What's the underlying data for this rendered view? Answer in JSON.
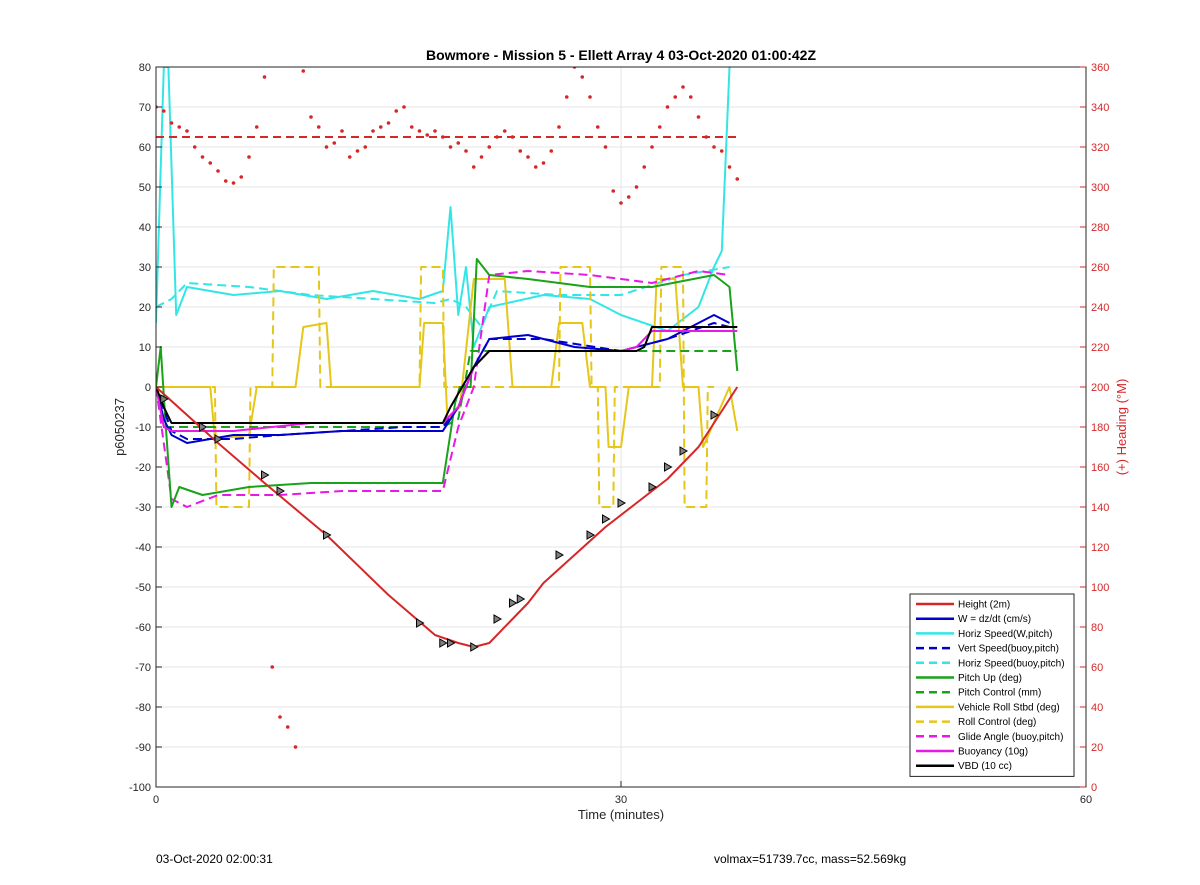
{
  "chart_data": {
    "type": "line",
    "title": "Bowmore - Mission 5 - Ellett Array 4 03-Oct-2020 01:00:42Z",
    "xlabel": "Time (minutes)",
    "ylabel": "p6050237",
    "y2label": "(+) Heading (°M)",
    "xlim": [
      0,
      60
    ],
    "ylim": [
      -100,
      80
    ],
    "y2lim": [
      0,
      360
    ],
    "x_ticks": [
      0,
      30,
      60
    ],
    "y_ticks": [
      -100,
      -90,
      -80,
      -70,
      -60,
      -50,
      -40,
      -30,
      -20,
      -10,
      0,
      10,
      20,
      30,
      40,
      50,
      60,
      70,
      80
    ],
    "y2_ticks": [
      0,
      20,
      40,
      60,
      80,
      100,
      120,
      140,
      160,
      180,
      200,
      220,
      240,
      260,
      280,
      300,
      320,
      340,
      360
    ],
    "grid": true,
    "legend_position": "bottom-right",
    "heading_ref": 325,
    "colors": {
      "red": "#d62728",
      "blue": "#0000cc",
      "cyan": "#33e6e6",
      "green": "#1aa31a",
      "yellow": "#e6c619",
      "magenta": "#e619e6",
      "black": "#000000"
    },
    "series": [
      {
        "name": "Height (2m)",
        "color": "#d62728",
        "dash": "solid",
        "x": [
          0,
          2,
          4,
          7,
          11,
          15,
          18,
          19.5,
          20.5,
          21.5,
          23,
          24,
          25,
          27,
          29,
          31,
          33,
          35,
          37.5
        ],
        "y": [
          0,
          -7,
          -14,
          -24,
          -37,
          -52,
          -62,
          -64,
          -65,
          -64,
          -58,
          -54,
          -49,
          -42,
          -35,
          -29,
          -23,
          -15,
          0
        ]
      },
      {
        "name": "W = dz/dt (cm/s)",
        "color": "#0000cc",
        "dash": "solid",
        "x": [
          0,
          0.5,
          1,
          2,
          5,
          8,
          12,
          16,
          18.5,
          19.5,
          20.5,
          21.5,
          24,
          27,
          30,
          33,
          36,
          37
        ],
        "y": [
          0,
          -8,
          -12,
          -14,
          -12,
          -12,
          -11,
          -11,
          -11,
          -5,
          5,
          12,
          13,
          10,
          9,
          12,
          18,
          16
        ]
      },
      {
        "name": "Horiz Speed(W,pitch)",
        "color": "#33e6e6",
        "dash": "solid",
        "x": [
          0,
          0.5,
          0.8,
          1.3,
          2,
          5,
          8,
          11,
          14,
          17,
          18.5,
          19,
          19.5,
          20,
          20.5,
          21.5,
          25,
          28,
          30,
          33,
          35,
          36,
          36.5,
          37
        ],
        "y": [
          16,
          80,
          80,
          18,
          25,
          23,
          24,
          22,
          24,
          22,
          24,
          45,
          18,
          30,
          10,
          20,
          23,
          22,
          18,
          14,
          20,
          30,
          34,
          80
        ]
      },
      {
        "name": "Vert Speed(buoy,pitch)",
        "color": "#0000cc",
        "dash": "dashed",
        "x": [
          0,
          1,
          2,
          5,
          8,
          12,
          16,
          18.5,
          19.5,
          20.5,
          21.5,
          25,
          30,
          33,
          36,
          37
        ],
        "y": [
          0,
          -11,
          -13,
          -13,
          -12,
          -11,
          -10,
          -10,
          -5,
          5,
          12,
          12,
          9,
          12,
          16,
          15
        ]
      },
      {
        "name": "Horiz Speed(buoy,pitch)",
        "color": "#33e6e6",
        "dash": "dashed",
        "x": [
          0,
          1,
          2,
          6,
          10,
          14,
          18,
          19,
          20,
          21,
          22,
          26,
          30,
          34,
          37
        ],
        "y": [
          20,
          22,
          26,
          25,
          23,
          22,
          21,
          22,
          20,
          15,
          24,
          23,
          23,
          28,
          30
        ]
      },
      {
        "name": "Pitch Up (deg)",
        "color": "#1aa31a",
        "dash": "solid",
        "x": [
          0,
          0.3,
          0.6,
          1,
          1.5,
          3,
          6,
          10,
          14,
          18.5,
          19.3,
          19.6,
          20.3,
          20.7,
          21.5,
          24,
          28,
          32,
          36,
          37,
          37.5
        ],
        "y": [
          0,
          10,
          -8,
          -30,
          -25,
          -27,
          -25,
          -24,
          -24,
          -24,
          -4,
          0,
          0,
          32,
          28,
          27,
          25,
          25,
          28,
          25,
          4
        ]
      },
      {
        "name": "Pitch Control (mm)",
        "color": "#1aa31a",
        "dash": "dashed",
        "x": [
          0,
          0.5,
          1,
          18.5,
          19.5,
          20.3,
          28,
          29,
          33,
          37.5
        ],
        "y": [
          0,
          -10,
          -10,
          -10,
          -8,
          9,
          9,
          9,
          9,
          9
        ]
      },
      {
        "name": "Vehicle Roll Stbd (deg)",
        "color": "#e6c619",
        "dash": "solid",
        "x": [
          0,
          0.5,
          1.5,
          3.5,
          3.8,
          6,
          6.5,
          9,
          9.5,
          11,
          11.3,
          17,
          17.3,
          18.5,
          18.8,
          19.6,
          20.5,
          21.5,
          22.5,
          23,
          23.2,
          25.5,
          26,
          27.5,
          28,
          29,
          29.2,
          30,
          30.5,
          32,
          32.3,
          33.5,
          34,
          35,
          35.3,
          37,
          37.5
        ],
        "y": [
          0,
          0,
          0,
          0,
          -13,
          -12,
          0,
          0,
          15,
          16,
          0,
          0,
          16,
          16,
          -8,
          -5,
          27,
          27,
          27,
          0,
          0,
          0,
          16,
          16,
          0,
          0,
          -15,
          -15,
          0,
          0,
          27,
          27,
          0,
          0,
          -15,
          0,
          -11
        ]
      },
      {
        "name": "Roll Control (deg)",
        "color": "#e6c619",
        "dash": "dashed",
        "x": [
          0,
          1.8,
          3.8,
          3.9,
          6,
          6.1,
          7.5,
          7.6,
          10.5,
          10.6,
          17,
          17.1,
          18.5,
          18.6,
          20,
          22,
          23,
          23.1,
          26,
          26.1,
          28,
          28.1,
          28.5,
          28.6,
          29.5,
          29.6,
          32.5,
          32.6,
          34,
          34.1,
          35.5,
          35.6,
          36
        ],
        "y": [
          0,
          0,
          0,
          -30,
          -30,
          0,
          0,
          30,
          30,
          0,
          0,
          30,
          30,
          0,
          0,
          0,
          0,
          0,
          0,
          30,
          30,
          0,
          0,
          -30,
          -30,
          0,
          0,
          30,
          30,
          -30,
          -30,
          0,
          0
        ]
      },
      {
        "name": "Glide Angle (buoy,pitch)",
        "color": "#e619e6",
        "dash": "dashed",
        "x": [
          0,
          1,
          2,
          4,
          8,
          12,
          16,
          18.5,
          19.5,
          20.5,
          21.5,
          24,
          28,
          32,
          35,
          37
        ],
        "y": [
          0,
          -28,
          -30,
          -27,
          -27,
          -26,
          -26,
          -26,
          -10,
          0,
          28,
          29,
          28,
          26,
          29,
          28
        ]
      },
      {
        "name": "Buoyancy (10g)",
        "color": "#e619e6",
        "dash": "solid",
        "x": [
          0,
          0.5,
          1,
          5,
          10,
          18.5,
          19.5,
          20.5,
          21.5,
          30,
          31,
          32,
          37.5
        ],
        "y": [
          0,
          -10,
          -11,
          -11,
          -9,
          -9,
          -5,
          5,
          9,
          9,
          10,
          14,
          14
        ]
      },
      {
        "name": "VBD (10 cc)",
        "color": "#000000",
        "dash": "solid",
        "x": [
          0,
          0.5,
          1,
          18.5,
          19,
          20.5,
          21.5,
          31,
          31.5,
          32,
          37.5
        ],
        "y": [
          0,
          -5,
          -9,
          -9,
          -5,
          5,
          9,
          9,
          10,
          15,
          15
        ]
      }
    ],
    "heading_points": {
      "name": "(+) Heading (°M)",
      "color": "#d62728",
      "x": [
        0,
        0.5,
        1,
        1.5,
        2,
        2.5,
        3,
        3.5,
        4,
        4.5,
        5,
        5.5,
        6,
        6.5,
        7,
        7.5,
        8,
        8.5,
        9,
        9.5,
        10,
        10.5,
        11,
        11.5,
        12,
        12.5,
        13,
        13.5,
        14,
        14.5,
        15,
        15.5,
        16,
        16.5,
        17,
        17.5,
        18,
        18.5,
        19,
        19.5,
        20,
        20.5,
        21,
        21.5,
        22,
        22.5,
        23,
        23.5,
        24,
        24.5,
        25,
        25.5,
        26,
        26.5,
        27,
        27.5,
        28,
        28.5,
        29,
        29.5,
        30,
        30.5,
        31,
        31.5,
        32,
        32.5,
        33,
        33.5,
        34,
        34.5,
        35,
        35.5,
        36,
        36.5,
        37,
        37.5
      ],
      "y": [
        340,
        338,
        332,
        330,
        328,
        320,
        315,
        312,
        308,
        303,
        302,
        305,
        315,
        330,
        355,
        60,
        35,
        30,
        20,
        358,
        335,
        330,
        320,
        322,
        328,
        315,
        318,
        320,
        328,
        330,
        332,
        338,
        340,
        330,
        328,
        326,
        328,
        325,
        320,
        322,
        318,
        310,
        315,
        320,
        325,
        328,
        325,
        318,
        315,
        310,
        312,
        318,
        330,
        345,
        360,
        355,
        345,
        330,
        320,
        298,
        292,
        295,
        300,
        310,
        320,
        330,
        340,
        345,
        350,
        345,
        335,
        325,
        320,
        318,
        310,
        304
      ]
    },
    "height_markers": {
      "x": [
        0.5,
        3,
        4,
        7,
        8,
        11,
        17,
        18.5,
        19,
        20.5,
        22,
        23,
        23.5,
        26,
        28,
        29,
        30,
        32,
        33,
        34,
        36
      ],
      "y": [
        -3,
        -10,
        -13,
        -22,
        -26,
        -37,
        -59,
        -64,
        -64,
        -65,
        -58,
        -54,
        -53,
        -42,
        -37,
        -33,
        -29,
        -25,
        -20,
        -16,
        -7
      ]
    }
  },
  "footer": {
    "timestamp": "03-Oct-2020 02:00:31",
    "info": "volmax=51739.7cc, mass=52.569kg"
  }
}
